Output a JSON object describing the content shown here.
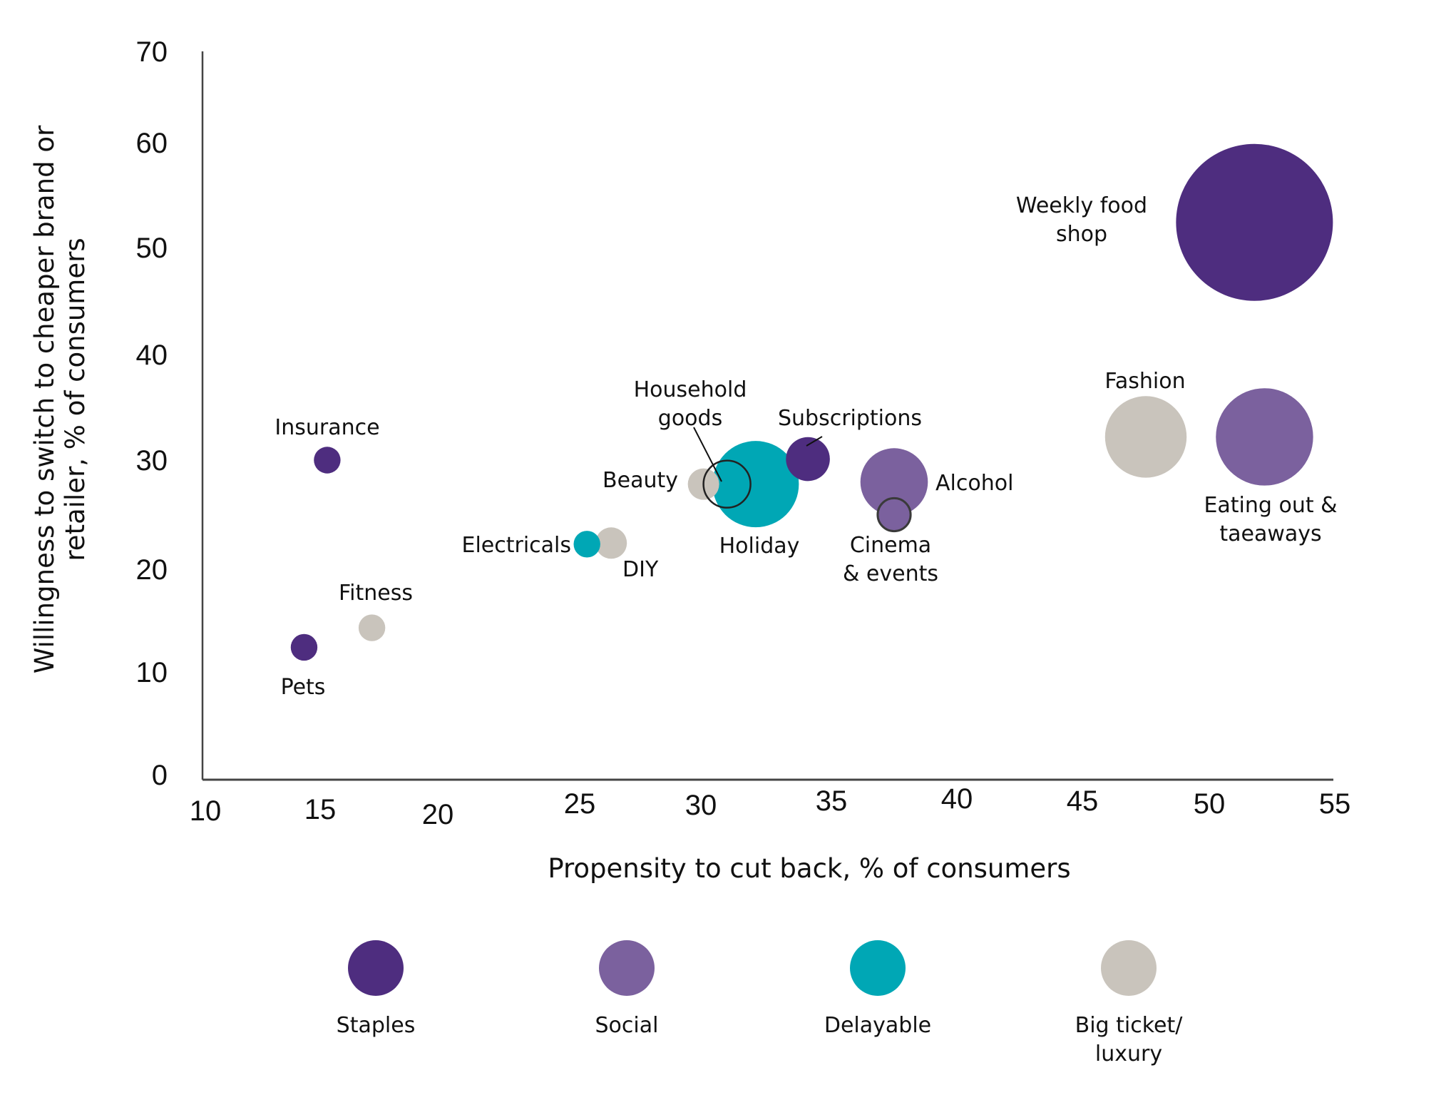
{
  "chart_data": {
    "type": "scatter",
    "subtype": "bubble",
    "title": "",
    "xlabel": "Propensity to cut back, % of consumers",
    "ylabel": [
      "Willingness to switch to cheaper brand or",
      "retailer, % of consumers"
    ],
    "xlim": [
      10,
      55
    ],
    "ylim": [
      0,
      70
    ],
    "x_ticks": [
      "10",
      "15",
      "20",
      "25",
      "30",
      "35",
      "40",
      "45",
      "50",
      "55"
    ],
    "y_ticks": [
      "70",
      "60",
      "50",
      "40",
      "30",
      "20",
      "10",
      "0"
    ],
    "grid": false,
    "legend_position": "bottom",
    "categories": [
      {
        "name": "Staples",
        "label_lines": [
          "Staples"
        ],
        "color": "#4e2d7f"
      },
      {
        "name": "Social",
        "label_lines": [
          "Social"
        ],
        "color": "#7b619e"
      },
      {
        "name": "Delayable",
        "label_lines": [
          "Delayable"
        ],
        "color": "#00a7b5"
      },
      {
        "name": "Big ticket/luxury",
        "label_lines": [
          "Big ticket/",
          "luxury"
        ],
        "color": "#c9c4bc"
      }
    ],
    "points": [
      {
        "label": [
          "Weekly food",
          "shop"
        ],
        "category": "Staples",
        "x": 51.8,
        "y": 52.4,
        "size": 1.0
      },
      {
        "label": [
          "Fashion"
        ],
        "category": "Big ticket/luxury",
        "x": 47.5,
        "y": 32.2,
        "size": 0.52
      },
      {
        "label": [
          "Eating out &",
          "taeaways"
        ],
        "category": "Social",
        "x": 52.2,
        "y": 32.2,
        "size": 0.62
      },
      {
        "label": [
          "Alcohol"
        ],
        "category": "Social",
        "x": 37.5,
        "y": 28.0,
        "size": 0.43
      },
      {
        "label": [
          "Cinema",
          "& events"
        ],
        "category": "Social",
        "x": 37.5,
        "y": 25.0,
        "size": 0.21,
        "outlined": true
      },
      {
        "label": [
          "Subscriptions"
        ],
        "category": "Staples",
        "x": 34.1,
        "y": 30.1,
        "size": 0.28
      },
      {
        "label": [
          "Holiday"
        ],
        "category": "Delayable",
        "x": 32.1,
        "y": 27.8,
        "size": 0.55
      },
      {
        "label": [
          "Household",
          "goods"
        ],
        "category": "Delayable",
        "x": 31.0,
        "y": 27.8,
        "size": 0.3,
        "outlined": true,
        "hollow": true
      },
      {
        "label": [
          "Beauty"
        ],
        "category": "Big ticket/luxury",
        "x": 30.1,
        "y": 27.8,
        "size": 0.2
      },
      {
        "label": [
          "Electricals"
        ],
        "category": "Delayable",
        "x": 25.3,
        "y": 22.3,
        "size": 0.17
      },
      {
        "label": [
          "DIY"
        ],
        "category": "Big ticket/luxury",
        "x": 26.3,
        "y": 22.4,
        "size": 0.2
      },
      {
        "label": [
          "Insurance"
        ],
        "category": "Staples",
        "x": 15.3,
        "y": 30.0,
        "size": 0.17
      },
      {
        "label": [
          "Fitness"
        ],
        "category": "Big ticket/luxury",
        "x": 17.2,
        "y": 14.3,
        "size": 0.17
      },
      {
        "label": [
          "Pets"
        ],
        "category": "Staples",
        "x": 14.3,
        "y": 12.4,
        "size": 0.17
      }
    ]
  }
}
